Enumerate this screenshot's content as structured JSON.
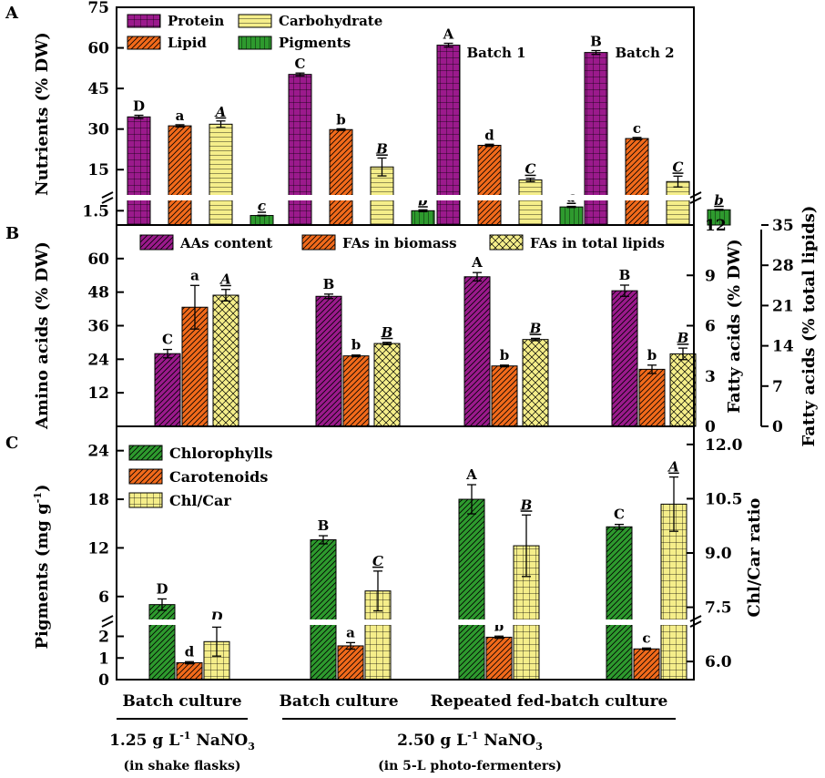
{
  "colors": {
    "protein": "#9b1a8c",
    "lipid": "#f26a1b",
    "carbohydrate": "#f5ee8a",
    "pigments": "#2e9a2e",
    "chlorophylls": "#2e9a2e",
    "carotenoids": "#f26a1b",
    "chlcar": "#f5ee8a",
    "aas": "#9b1a8c",
    "fas_biomass": "#f26a1b",
    "fas_total": "#f5ee8a"
  },
  "chart_data": [
    {
      "panel_label": "A",
      "type": "bar",
      "ylabel": "Nutrients  (% DW)",
      "y_ticks_upper": [
        "15",
        "30",
        "45",
        "60",
        "75"
      ],
      "y_ticks_lower": [
        "1.5"
      ],
      "ylim_upper": [
        7,
        75
      ],
      "ylim_lower": [
        0,
        2.2
      ],
      "axis_break": true,
      "categories": [
        "Batch culture (1.25 g/L)",
        "Batch culture (2.50 g/L)",
        "Batch 1",
        "Batch 2"
      ],
      "group_labels": [
        "",
        "",
        "Batch 1",
        "Batch 2"
      ],
      "series": [
        {
          "name": "Protein",
          "values": [
            34.5,
            50.2,
            61.0,
            58.3
          ],
          "errors": [
            0.6,
            0.5,
            0.7,
            0.7
          ],
          "letters": [
            "D",
            "C",
            "A",
            "B"
          ],
          "letter_style": "plain"
        },
        {
          "name": "Lipid",
          "values": [
            31.2,
            29.8,
            24.0,
            26.5
          ],
          "errors": [
            0.4,
            0.3,
            0.4,
            0.4
          ],
          "letters": [
            "a",
            "b",
            "d",
            "c"
          ],
          "letter_style": "plain"
        },
        {
          "name": "Carbohydrate",
          "values": [
            31.8,
            16.0,
            11.2,
            10.6
          ],
          "errors": [
            1.2,
            3.3,
            0.6,
            2.0
          ],
          "letters": [
            "A",
            "B",
            "C",
            "C"
          ],
          "letter_style": "italic-underline"
        },
        {
          "name": "Pigments",
          "values": [
            1.0,
            1.5,
            1.9,
            1.6
          ],
          "errors": [
            0.03,
            0.1,
            0.06,
            0.05
          ],
          "letters": [
            "c",
            "b",
            "a",
            "b"
          ],
          "letter_style": "italic-underline"
        }
      ],
      "legend": [
        "Protein",
        "Carbohydrate",
        "Lipid",
        "Pigments"
      ],
      "legend_position": "top-left"
    },
    {
      "panel_label": "B",
      "type": "bar",
      "ylabel": "Amino acids (% DW)",
      "ylabel_right1": "Fatty acids (% DW)",
      "ylabel_right2": "Fatty acids (% total lipids)",
      "y_ticks": [
        "12",
        "24",
        "36",
        "48",
        "60"
      ],
      "ylim": [
        0,
        72
      ],
      "y_right1_ticks": [
        "0",
        "3",
        "6",
        "9",
        "12"
      ],
      "ylim_right1": [
        0,
        12
      ],
      "y_right2_ticks": [
        "0",
        "7",
        "14",
        "21",
        "28",
        "35"
      ],
      "ylim_right2": [
        0,
        35
      ],
      "series": [
        {
          "name": "AAs content",
          "axis": "left",
          "values": [
            26.0,
            46.5,
            53.5,
            48.5
          ],
          "errors": [
            1.5,
            0.8,
            1.5,
            2.0
          ],
          "letters": [
            "C",
            "B",
            "A",
            "B"
          ],
          "letter_style": "plain"
        },
        {
          "name": "FAs in biomass",
          "axis": "right1",
          "values": [
            7.1,
            4.2,
            3.6,
            3.4
          ],
          "errors": [
            1.3,
            0.05,
            0.05,
            0.25
          ],
          "letters": [
            "a",
            "b",
            "b",
            "b"
          ],
          "letter_style": "plain"
        },
        {
          "name": "FAs in total lipids",
          "axis": "right2",
          "values": [
            22.8,
            14.4,
            15.1,
            12.6
          ],
          "errors": [
            1.0,
            0.2,
            0.2,
            1.0
          ],
          "letters": [
            "A",
            "B",
            "B",
            "B"
          ],
          "letter_style": "italic-underline"
        }
      ],
      "legend": [
        "AAs content",
        "FAs in biomass",
        "FAs in total lipids"
      ],
      "legend_position": "top"
    },
    {
      "panel_label": "C",
      "type": "bar",
      "ylabel": "Pigments (mg g-1)",
      "ylabel_right": "Chl/Car ratio",
      "y_ticks_upper": [
        "6",
        "12",
        "18",
        "24"
      ],
      "y_ticks_lower": [
        "0",
        "1",
        "2"
      ],
      "ylim_upper": [
        3.5,
        27
      ],
      "ylim_lower": [
        0,
        2.4
      ],
      "y_right_ticks": [
        "6.0",
        "7.5",
        "9.0",
        "10.5",
        "12.0"
      ],
      "ylim_right": [
        5.5,
        12.5
      ],
      "axis_break": true,
      "series": [
        {
          "name": "Chlorophylls",
          "axis": "left",
          "values": [
            5.0,
            13.0,
            18.0,
            14.6
          ],
          "errors": [
            0.7,
            0.5,
            1.8,
            0.3
          ],
          "letters": [
            "D",
            "B",
            "A",
            "C"
          ],
          "letter_style": "plain"
        },
        {
          "name": "Carotenoids",
          "axis": "left",
          "values": [
            0.78,
            1.56,
            1.96,
            1.42
          ],
          "errors": [
            0.05,
            0.15,
            0.05,
            0.04
          ],
          "letters": [
            "d",
            "a",
            "b",
            "c"
          ],
          "letter_style": "plain"
        },
        {
          "name": "Chl/Car",
          "axis": "right",
          "values": [
            6.55,
            7.95,
            9.2,
            10.35
          ],
          "errors": [
            0.4,
            0.55,
            0.85,
            0.75
          ],
          "letters": [
            "D",
            "C",
            "B",
            "A"
          ],
          "letter_style": "italic-underline"
        }
      ],
      "legend": [
        "Chlorophylls",
        "Carotenoids",
        "Chl/Car"
      ],
      "legend_position": "top-left"
    }
  ],
  "bottom_labels": {
    "group1": "Batch culture",
    "group2": "Batch culture",
    "group3": "Repeated fed-batch culture",
    "cond1_main": "1.25 g L",
    "cond1_sup": "-1",
    "cond1_tail": " NaNO",
    "cond1_sub": "3",
    "cond1_note": "(in shake flasks)",
    "cond2_main": "2.50 g L",
    "cond2_sup": "-1",
    "cond2_tail": " NaNO",
    "cond2_sub": "3",
    "cond2_note": "(in 5-L photo-fermenters)"
  },
  "pigment_unit": {
    "main": "Pigments (mg g",
    "sup": "-1",
    "tail": ")"
  }
}
